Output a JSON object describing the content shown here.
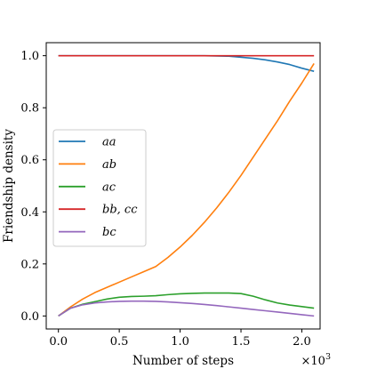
{
  "chart_data": {
    "type": "line",
    "xlabel": "Number of steps",
    "ylabel": "Friendship density",
    "x_multiplier_label": "×10",
    "x_multiplier_exponent": "3",
    "xlim": [
      -0.1,
      2.15
    ],
    "ylim": [
      -0.05,
      1.05
    ],
    "xticks": [
      0.0,
      0.5,
      1.0,
      1.5,
      2.0
    ],
    "xtick_labels": [
      "0.0",
      "0.5",
      "1.0",
      "1.5",
      "2.0"
    ],
    "yticks": [
      0.0,
      0.2,
      0.4,
      0.6,
      0.8,
      1.0
    ],
    "ytick_labels": [
      "0.0",
      "0.2",
      "0.4",
      "0.6",
      "0.8",
      "1.0"
    ],
    "grid": false,
    "legend_position": "center-left",
    "series": [
      {
        "name": "aa",
        "color": "#1f77b4",
        "x": [
          0.0,
          0.2,
          0.4,
          0.6,
          0.8,
          1.0,
          1.2,
          1.4,
          1.6,
          1.7,
          1.8,
          1.9,
          2.0,
          2.1
        ],
        "y": [
          1.0,
          1.0,
          1.0,
          1.0,
          1.0,
          1.0,
          1.0,
          0.998,
          0.99,
          0.984,
          0.976,
          0.966,
          0.952,
          0.94
        ]
      },
      {
        "name": "ab",
        "color": "#ff7f0e",
        "x": [
          0.0,
          0.1,
          0.2,
          0.3,
          0.4,
          0.5,
          0.6,
          0.7,
          0.8,
          0.9,
          1.0,
          1.1,
          1.2,
          1.3,
          1.4,
          1.5,
          1.6,
          1.7,
          1.8,
          1.9,
          2.0,
          2.1
        ],
        "y": [
          0.0,
          0.035,
          0.065,
          0.09,
          0.11,
          0.13,
          0.15,
          0.17,
          0.19,
          0.225,
          0.265,
          0.31,
          0.36,
          0.415,
          0.475,
          0.54,
          0.61,
          0.68,
          0.75,
          0.825,
          0.895,
          0.97
        ]
      },
      {
        "name": "ac",
        "color": "#2ca02c",
        "x": [
          0.0,
          0.1,
          0.2,
          0.3,
          0.4,
          0.5,
          0.6,
          0.7,
          0.8,
          0.9,
          1.0,
          1.1,
          1.2,
          1.3,
          1.4,
          1.5,
          1.6,
          1.7,
          1.8,
          1.9,
          2.0,
          2.1
        ],
        "y": [
          0.0,
          0.03,
          0.045,
          0.055,
          0.065,
          0.072,
          0.075,
          0.076,
          0.078,
          0.082,
          0.085,
          0.087,
          0.088,
          0.088,
          0.088,
          0.086,
          0.076,
          0.062,
          0.05,
          0.042,
          0.036,
          0.03
        ]
      },
      {
        "name": "bb, cc",
        "color": "#d62728",
        "x": [
          0.0,
          2.1
        ],
        "y": [
          1.0,
          1.0
        ]
      },
      {
        "name": "bc",
        "color": "#9467bd",
        "x": [
          0.0,
          0.1,
          0.2,
          0.3,
          0.4,
          0.5,
          0.6,
          0.7,
          0.8,
          0.9,
          1.0,
          1.1,
          1.2,
          1.3,
          1.4,
          1.5,
          1.6,
          1.7,
          1.8,
          1.9,
          2.0,
          2.1
        ],
        "y": [
          0.0,
          0.03,
          0.043,
          0.05,
          0.054,
          0.056,
          0.057,
          0.057,
          0.056,
          0.054,
          0.051,
          0.048,
          0.044,
          0.04,
          0.035,
          0.03,
          0.025,
          0.02,
          0.015,
          0.01,
          0.005,
          0.0
        ]
      }
    ]
  }
}
